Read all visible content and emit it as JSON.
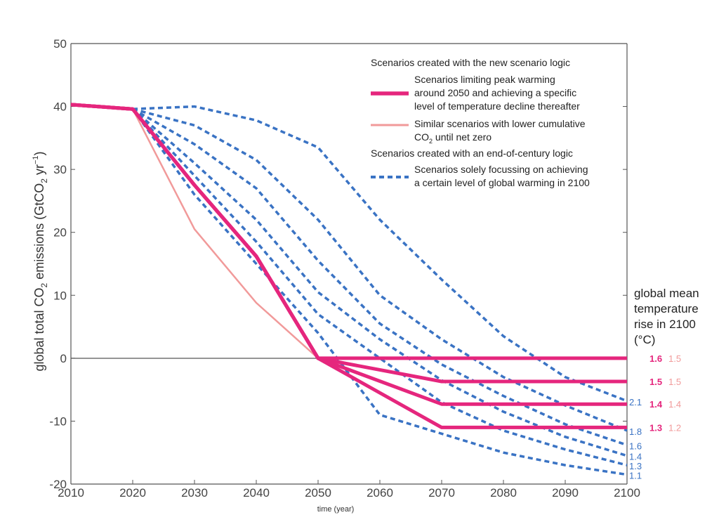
{
  "colors": {
    "magenta": "#e5267d",
    "salmon": "#f19a9a",
    "blue": "#3a73c4",
    "axis": "#555555"
  },
  "chart_data": {
    "type": "line",
    "xlabel": "time (year)",
    "ylabel_parts": {
      "a": "global total CO",
      "sub": "2",
      "b": " emissions (GtCO",
      "sub2": "2",
      "c": " yr",
      "sup": "−1",
      "d": ")"
    },
    "xlim": [
      2010,
      2100
    ],
    "ylim": [
      -20,
      50
    ],
    "xticks": [
      "2010",
      "2020",
      "2030",
      "2040",
      "2050",
      "2060",
      "2070",
      "2080",
      "2090",
      "2100"
    ],
    "yticks": [
      "50",
      "40",
      "30",
      "20",
      "10",
      "0",
      "-10",
      "-20"
    ],
    "legend": {
      "header1": "Scenarios created with the new scenario logic",
      "magenta_lines": [
        "Scenarios limiting peak warming",
        "around 2050 and achieving a specific",
        "level of temperature decline thereafter"
      ],
      "salmon_line1": "Similar scenarios with lower cumulative",
      "salmon_line2_a": "CO",
      "salmon_line2_sub": "2",
      "salmon_line2_b": " until net zero",
      "header2": "Scenarios created with an end-of-century logic",
      "blue_lines": [
        "Scenarios solely focussing on achieving",
        "a certain level of global warming in 2100"
      ]
    },
    "right_title": [
      "global mean",
      "temperature",
      "rise in 2100",
      "(°C)"
    ],
    "magenta_series": [
      {
        "name": "",
        "x": [
          2010,
          2020,
          2030,
          2040,
          2050,
          2100
        ],
        "y": [
          40.3,
          39.6,
          27.5,
          16.2,
          0,
          0
        ],
        "label": "1.6",
        "salmon_label": "1.5"
      },
      {
        "name": "",
        "x": [
          2010,
          2020,
          2030,
          2040,
          2050,
          2070,
          2100
        ],
        "y": [
          40.3,
          39.6,
          27.5,
          16.2,
          0,
          -3.7,
          -3.7
        ],
        "label": "1.5",
        "salmon_label": "1.5"
      },
      {
        "name": "",
        "x": [
          2010,
          2020,
          2030,
          2040,
          2050,
          2070,
          2100
        ],
        "y": [
          40.3,
          39.6,
          27.5,
          16.2,
          0,
          -7.3,
          -7.3
        ],
        "label": "1.4",
        "salmon_label": "1.4"
      },
      {
        "name": "",
        "x": [
          2010,
          2020,
          2030,
          2040,
          2050,
          2070,
          2100
        ],
        "y": [
          40.3,
          39.6,
          27.5,
          16.2,
          0,
          -11,
          -11
        ],
        "label": "1.3",
        "salmon_label": "1.2"
      }
    ],
    "salmon_series": [
      {
        "name": "",
        "x": [
          2020,
          2030,
          2040,
          2050
        ],
        "y": [
          39.6,
          20.5,
          8.8,
          0
        ]
      }
    ],
    "blue_series": [
      {
        "name": "",
        "label": "2.1",
        "x": [
          2020,
          2030,
          2040,
          2050,
          2060,
          2070,
          2080,
          2090,
          2100
        ],
        "y": [
          39.6,
          40,
          37.8,
          33.5,
          22,
          12.5,
          3.5,
          -3,
          -6.8
        ]
      },
      {
        "name": "",
        "label": "1.8",
        "x": [
          2020,
          2030,
          2040,
          2050,
          2060,
          2070,
          2080,
          2090,
          2100
        ],
        "y": [
          39.6,
          37,
          31.5,
          22,
          10,
          3,
          -3,
          -7.5,
          -11.5
        ]
      },
      {
        "name": "",
        "label": "1.6",
        "x": [
          2020,
          2030,
          2040,
          2050,
          2060,
          2070,
          2080,
          2090,
          2100
        ],
        "y": [
          39.6,
          34,
          27,
          15.5,
          5.5,
          -1,
          -6,
          -10.5,
          -13.8
        ]
      },
      {
        "name": "",
        "label": "1.4",
        "x": [
          2020,
          2030,
          2040,
          2050,
          2060,
          2070,
          2080,
          2090,
          2100
        ],
        "y": [
          39.6,
          31,
          22,
          10.5,
          3,
          -3.5,
          -8.5,
          -12.5,
          -15.5
        ]
      },
      {
        "name": "",
        "label": "1.3",
        "x": [
          2020,
          2030,
          2040,
          2050,
          2060,
          2070,
          2080,
          2090,
          2100
        ],
        "y": [
          39.6,
          29,
          18.5,
          7,
          0,
          -7,
          -11.5,
          -14.5,
          -17
        ]
      },
      {
        "name": "",
        "label": "1.1",
        "x": [
          2020,
          2030,
          2040,
          2050,
          2060,
          2070,
          2080,
          2090,
          2100
        ],
        "y": [
          39.6,
          26,
          15,
          4,
          -9,
          -12,
          -15,
          -17,
          -18.5
        ]
      }
    ]
  }
}
